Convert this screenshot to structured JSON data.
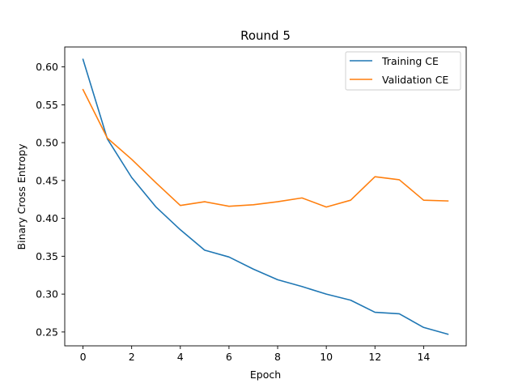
{
  "chart_data": {
    "type": "line",
    "title": "Round 5",
    "xlabel": "Epoch",
    "ylabel": "Binary Cross Entropy",
    "xlim": [
      -0.75,
      15.75
    ],
    "ylim": [
      0.2317,
      0.6263
    ],
    "xticks": [
      0,
      2,
      4,
      6,
      8,
      10,
      12,
      14
    ],
    "xtick_labels": [
      "0",
      "2",
      "4",
      "6",
      "8",
      "10",
      "12",
      "14"
    ],
    "yticks": [
      0.25,
      0.3,
      0.35,
      0.4,
      0.45,
      0.5,
      0.55,
      0.6
    ],
    "ytick_labels": [
      "0.25",
      "0.30",
      "0.35",
      "0.40",
      "0.45",
      "0.50",
      "0.55",
      "0.60"
    ],
    "grid": false,
    "legend_position": "top-right",
    "x": [
      0,
      1,
      2,
      3,
      4,
      5,
      6,
      7,
      8,
      9,
      10,
      11,
      12,
      13,
      14,
      15
    ],
    "series": [
      {
        "name": "Training CE",
        "color": "#1f77b4",
        "values": [
          0.61,
          0.505,
          0.454,
          0.415,
          0.385,
          0.358,
          0.349,
          0.333,
          0.319,
          0.31,
          0.3,
          0.292,
          0.276,
          0.274,
          0.256,
          0.247
        ]
      },
      {
        "name": "Validation CE",
        "color": "#ff7f0e",
        "values": [
          0.57,
          0.506,
          0.478,
          0.447,
          0.417,
          0.422,
          0.416,
          0.418,
          0.422,
          0.427,
          0.415,
          0.424,
          0.455,
          0.451,
          0.424,
          0.423
        ]
      }
    ]
  }
}
